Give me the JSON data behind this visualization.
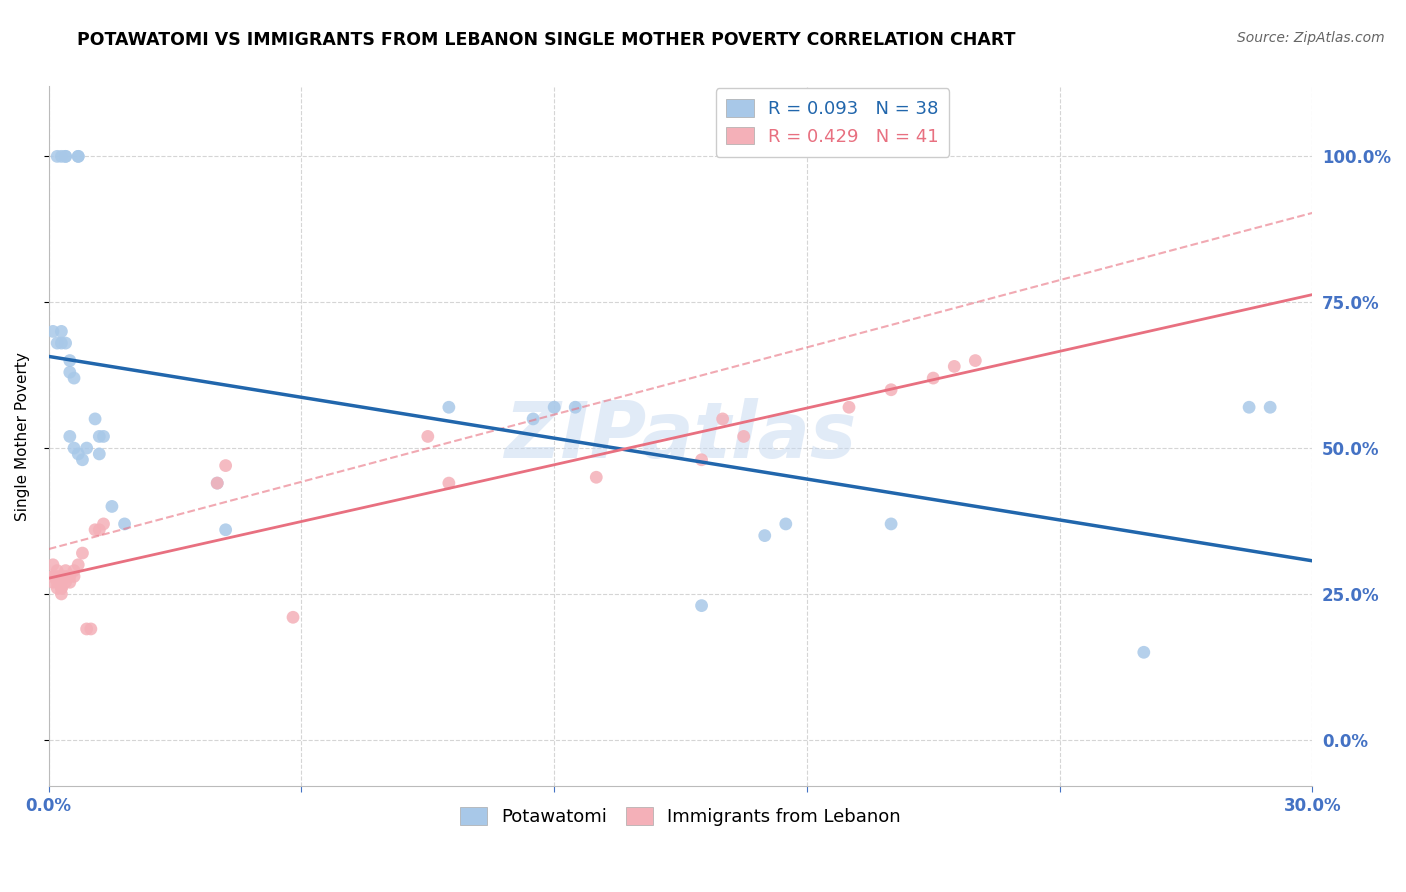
{
  "title": "POTAWATOMI VS IMMIGRANTS FROM LEBANON SINGLE MOTHER POVERTY CORRELATION CHART",
  "source": "Source: ZipAtlas.com",
  "ylabel": "Single Mother Poverty",
  "series1_label": "Potawatomi",
  "series2_label": "Immigrants from Lebanon",
  "series1_R": "0.093",
  "series1_N": "38",
  "series2_R": "0.429",
  "series2_N": "41",
  "series1_color": "#a8c8e8",
  "series2_color": "#f4b0b8",
  "trend1_color": "#2166ac",
  "trend2_color": "#e87080",
  "xlim": [
    0.0,
    0.3
  ],
  "ylim": [
    -0.08,
    1.12
  ],
  "right_yticks": [
    0.0,
    0.25,
    0.5,
    0.75,
    1.0
  ],
  "right_yticklabels": [
    "0.0%",
    "25.0%",
    "50.0%",
    "75.0%",
    "100.0%"
  ],
  "xtick_positions": [
    0.0,
    0.06,
    0.12,
    0.18,
    0.24,
    0.3
  ],
  "xtick_labels": [
    "0.0%",
    "",
    "",
    "",
    "",
    "30.0%"
  ],
  "axis_color": "#4472C4",
  "grid_color": "#d5d5d5",
  "watermark": "ZIPatlas",
  "potawatomi_x": [
    0.002,
    0.003,
    0.004,
    0.004,
    0.007,
    0.007,
    0.001,
    0.002,
    0.003,
    0.003,
    0.004,
    0.005,
    0.005,
    0.006,
    0.005,
    0.006,
    0.007,
    0.008,
    0.009,
    0.011,
    0.012,
    0.012,
    0.013,
    0.015,
    0.018,
    0.04,
    0.042,
    0.095,
    0.115,
    0.12,
    0.125,
    0.155,
    0.2,
    0.17,
    0.175,
    0.26,
    0.285,
    0.29
  ],
  "potawatomi_y": [
    1.0,
    1.0,
    1.0,
    1.0,
    1.0,
    1.0,
    0.7,
    0.68,
    0.68,
    0.7,
    0.68,
    0.65,
    0.63,
    0.62,
    0.52,
    0.5,
    0.49,
    0.48,
    0.5,
    0.55,
    0.52,
    0.49,
    0.52,
    0.4,
    0.37,
    0.44,
    0.36,
    0.57,
    0.55,
    0.57,
    0.57,
    0.23,
    0.37,
    0.35,
    0.37,
    0.15,
    0.57,
    0.57
  ],
  "lebanon_x": [
    0.001,
    0.001,
    0.001,
    0.001,
    0.002,
    0.002,
    0.002,
    0.002,
    0.003,
    0.003,
    0.003,
    0.003,
    0.003,
    0.004,
    0.004,
    0.004,
    0.005,
    0.005,
    0.006,
    0.006,
    0.007,
    0.008,
    0.009,
    0.01,
    0.011,
    0.012,
    0.013,
    0.04,
    0.042,
    0.058,
    0.09,
    0.095,
    0.13,
    0.155,
    0.16,
    0.165,
    0.19,
    0.2,
    0.21,
    0.215,
    0.22
  ],
  "lebanon_y": [
    0.27,
    0.28,
    0.28,
    0.3,
    0.26,
    0.27,
    0.28,
    0.29,
    0.25,
    0.26,
    0.26,
    0.27,
    0.28,
    0.27,
    0.28,
    0.29,
    0.27,
    0.28,
    0.28,
    0.29,
    0.3,
    0.32,
    0.19,
    0.19,
    0.36,
    0.36,
    0.37,
    0.44,
    0.47,
    0.21,
    0.52,
    0.44,
    0.45,
    0.48,
    0.55,
    0.52,
    0.57,
    0.6,
    0.62,
    0.64,
    0.65
  ]
}
